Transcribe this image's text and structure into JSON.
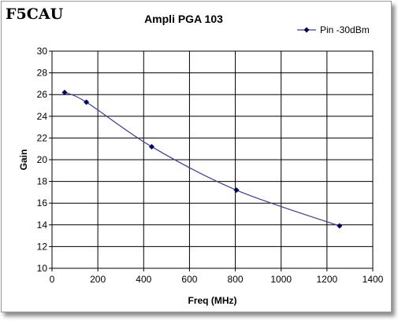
{
  "watermark": "F5CAU",
  "colors": {
    "series": "#000066",
    "line": "#3b3b9e",
    "grid": "#000000"
  },
  "chart_data": {
    "type": "line",
    "title": "Ampli PGA 103",
    "xlabel": "Freq (MHz)",
    "ylabel": "Gain",
    "xlim": [
      0,
      1400
    ],
    "ylim": [
      10,
      30
    ],
    "xticks": [
      0,
      200,
      400,
      600,
      800,
      1000,
      1200,
      1400
    ],
    "yticks": [
      10,
      12,
      14,
      16,
      18,
      20,
      22,
      24,
      26,
      28,
      30
    ],
    "grid": true,
    "legend_position": "top-right",
    "series": [
      {
        "name": "Pin -30dBm",
        "marker": "diamond",
        "smooth": true,
        "x": [
          55,
          150,
          435,
          805,
          1255
        ],
        "y": [
          26.2,
          25.3,
          21.2,
          17.2,
          13.9
        ]
      }
    ]
  }
}
